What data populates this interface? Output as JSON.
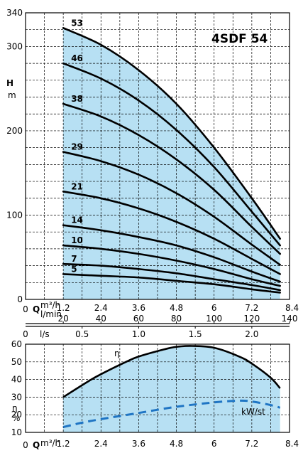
{
  "model": "4SDF 54",
  "chart_data": [
    {
      "type": "line",
      "title": "4SDF 54",
      "ylabel_top": "H",
      "ylabel_unit": "m",
      "ylim": [
        0,
        340
      ],
      "xlim": [
        0,
        8.4
      ],
      "grid": true,
      "y_ticks": [
        "0",
        "100",
        "200",
        "300",
        "340"
      ],
      "x_axis_m3h": {
        "label": "Q",
        "unit": "m³/h",
        "ticks": [
          "1.2",
          "2.4",
          "3.6",
          "4.8",
          "6",
          "7.2",
          "8.4"
        ],
        "zero": "0"
      },
      "x_axis_lmin": {
        "unit": "l/min",
        "ticks": [
          "20",
          "40",
          "60",
          "80",
          "100",
          "120",
          "140"
        ]
      },
      "x_axis_ls": {
        "zero": "0",
        "unit": "l/s",
        "ticks": [
          "0.5",
          "1.0",
          "1.5",
          "2.0"
        ]
      },
      "shaded_range_x": [
        1.2,
        8.1
      ],
      "series": [
        {
          "name": "53",
          "x": [
            1.2,
            2.4,
            3.6,
            4.8,
            6.0,
            7.2,
            8.1
          ],
          "y": [
            322,
            302,
            272,
            232,
            180,
            120,
            72
          ]
        },
        {
          "name": "46",
          "x": [
            1.2,
            2.4,
            3.6,
            4.8,
            6.0,
            7.2,
            8.1
          ],
          "y": [
            280,
            262,
            236,
            201,
            157,
            104,
            64
          ]
        },
        {
          "name": "38",
          "x": [
            1.2,
            2.4,
            3.6,
            4.8,
            6.0,
            7.2,
            8.1
          ],
          "y": [
            232,
            217,
            195,
            166,
            130,
            86,
            54
          ]
        },
        {
          "name": "29",
          "x": [
            1.2,
            2.4,
            3.6,
            4.8,
            6.0,
            7.2,
            8.1
          ],
          "y": [
            175,
            164,
            148,
            126,
            98,
            65,
            41
          ]
        },
        {
          "name": "21",
          "x": [
            1.2,
            2.4,
            3.6,
            4.8,
            6.0,
            7.2,
            8.1
          ],
          "y": [
            128,
            120,
            108,
            92,
            72,
            48,
            30
          ]
        },
        {
          "name": "14",
          "x": [
            1.2,
            2.4,
            3.6,
            4.8,
            6.0,
            7.2,
            8.1
          ],
          "y": [
            88,
            82,
            74,
            64,
            50,
            33,
            21
          ]
        },
        {
          "name": "10",
          "x": [
            1.2,
            2.4,
            3.6,
            4.8,
            6.0,
            7.2,
            8.1
          ],
          "y": [
            64,
            60,
            54,
            46,
            36,
            24,
            16
          ]
        },
        {
          "name": "7",
          "x": [
            1.2,
            2.4,
            3.6,
            4.8,
            6.0,
            7.2,
            8.1
          ],
          "y": [
            42,
            40,
            36,
            31,
            24,
            17,
            11
          ]
        },
        {
          "name": "5",
          "x": [
            1.2,
            2.4,
            3.6,
            4.8,
            6.0,
            7.2,
            8.1
          ],
          "y": [
            30,
            28,
            26,
            22,
            18,
            12,
            8
          ]
        }
      ]
    },
    {
      "type": "line",
      "ylabel": "η",
      "ylabel_unit": "%",
      "ylim": [
        10,
        60
      ],
      "xlim": [
        0,
        8.4
      ],
      "grid": true,
      "y_ticks": [
        "10",
        "20",
        "30",
        "40",
        "50",
        "60"
      ],
      "x_axis_m3h": {
        "label": "Q",
        "unit": "m³/h",
        "ticks": [
          "1.2",
          "2.4",
          "3.6",
          "4.8",
          "6",
          "7.2",
          "8.4"
        ],
        "zero": "0"
      },
      "shaded_range_x": [
        1.2,
        8.1
      ],
      "series": [
        {
          "name": "η",
          "style": "solid",
          "x": [
            1.2,
            2.0,
            2.4,
            3.2,
            3.6,
            4.4,
            4.8,
            5.3,
            6.0,
            6.8,
            7.2,
            7.8,
            8.1
          ],
          "y": [
            30,
            39,
            43,
            50,
            53,
            57,
            58.5,
            59,
            58,
            53,
            49,
            41,
            35
          ]
        },
        {
          "name": "kW/st",
          "style": "dashed",
          "x": [
            1.2,
            1.8,
            2.4,
            3.6,
            4.8,
            6.0,
            6.8,
            7.2,
            7.8,
            8.1
          ],
          "y": [
            13,
            15.5,
            17.5,
            21,
            24.5,
            27,
            28,
            27.5,
            25.5,
            24
          ]
        }
      ]
    }
  ]
}
